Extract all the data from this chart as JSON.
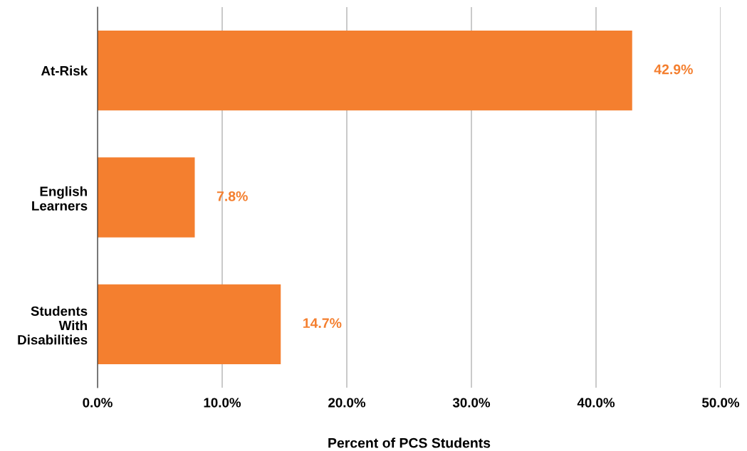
{
  "chart_data": {
    "type": "bar",
    "orientation": "horizontal",
    "xlabel": "Percent of PCS Students",
    "categories": [
      "At-Risk",
      "English\nLearners",
      "Students\nWith\nDisabilities"
    ],
    "values": [
      42.9,
      7.8,
      14.7
    ],
    "value_labels": [
      "42.9%",
      "7.8%",
      "14.7%"
    ],
    "color": "#f47f2f",
    "xlim": [
      0,
      50
    ],
    "xticks": [
      {
        "value": 0,
        "label": "0.0%"
      },
      {
        "value": 10,
        "label": "10.0%"
      },
      {
        "value": 20,
        "label": "20.0%"
      },
      {
        "value": 30,
        "label": "30.0%"
      },
      {
        "value": 40,
        "label": "40.0%"
      },
      {
        "value": 50,
        "label": "50.0%"
      }
    ],
    "grid": "x"
  }
}
